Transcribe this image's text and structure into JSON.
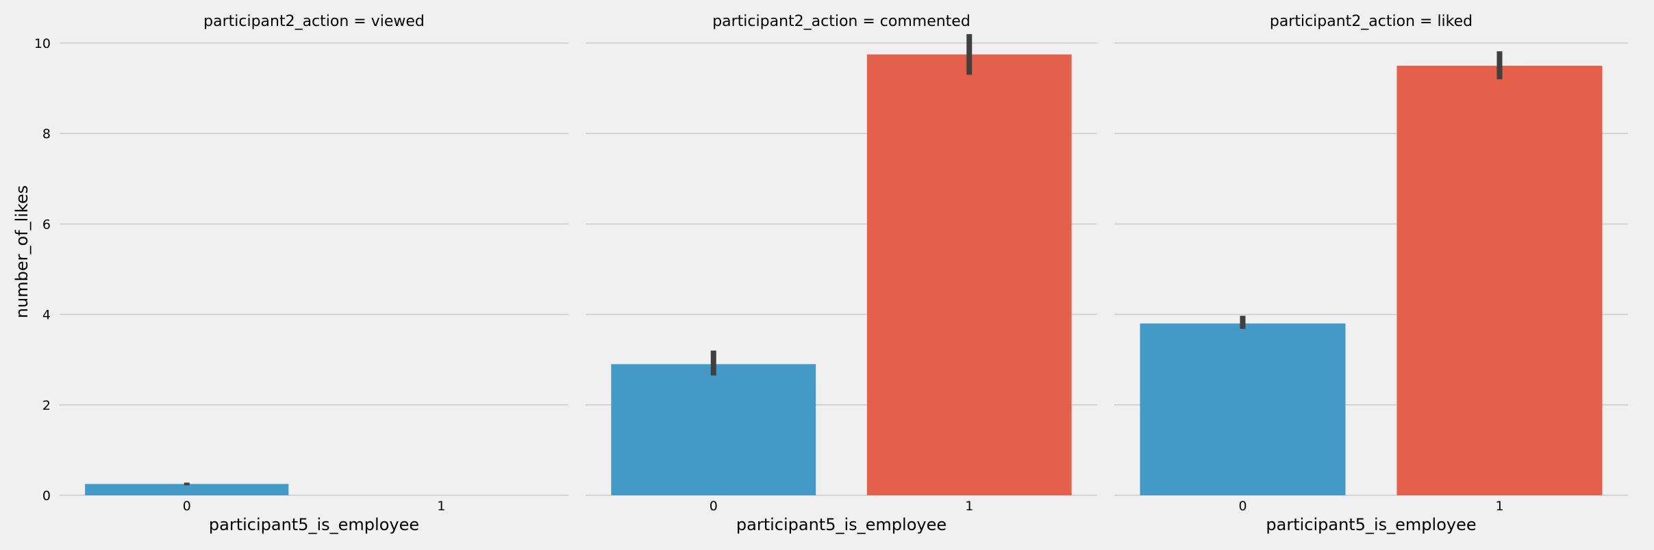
{
  "chart_data": {
    "type": "bar",
    "ylabel": "number_of_likes",
    "xlabel": "participant5_is_employee",
    "ylim": [
      0,
      10.5
    ],
    "yticks": [
      0,
      2,
      4,
      6,
      8,
      10
    ],
    "categories": [
      "0",
      "1"
    ],
    "grid": "horizontal",
    "colors": {
      "0": "#449ac6",
      "1": "#e4604a"
    },
    "errorbar_color": "#404040",
    "facets": [
      {
        "title": "participant2_action = viewed",
        "bars": [
          {
            "category": "0",
            "value": 0.25,
            "ci": [
              0.22,
              0.28
            ]
          },
          {
            "category": "1",
            "value": null,
            "ci": null
          }
        ]
      },
      {
        "title": "participant2_action = commented",
        "bars": [
          {
            "category": "0",
            "value": 2.9,
            "ci": [
              2.65,
              3.2
            ]
          },
          {
            "category": "1",
            "value": 9.75,
            "ci": [
              9.3,
              10.2
            ]
          }
        ]
      },
      {
        "title": "participant2_action = liked",
        "bars": [
          {
            "category": "0",
            "value": 3.8,
            "ci": [
              3.68,
              3.97
            ]
          },
          {
            "category": "1",
            "value": 9.5,
            "ci": [
              9.2,
              9.82
            ]
          }
        ]
      }
    ]
  }
}
